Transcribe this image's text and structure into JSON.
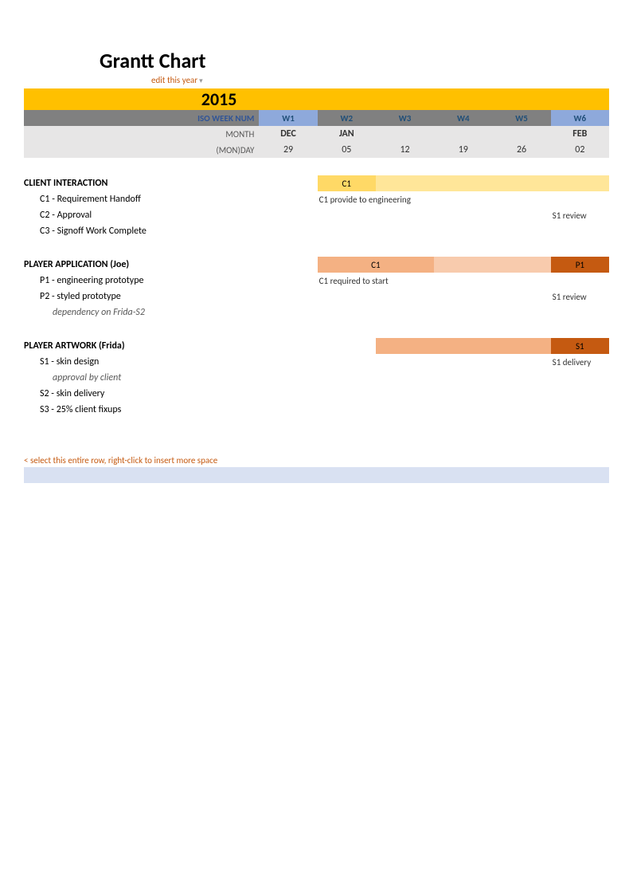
{
  "title": "Grantt Chart",
  "subtitle": "edit this year",
  "year": "2015",
  "colors": {
    "orange_band": "#ffc000",
    "grey_band": "#808080",
    "darkblue_text": "#1f4e78",
    "lightblue_cell": "#8ea9db",
    "lightgrey": "#e7e6e6",
    "accent_text": "#c55a11",
    "bar_yellow": "#ffd966",
    "bar_yellow_light": "#ffe699",
    "bar_orange": "#f4b183",
    "bar_orange_dark": "#c55a11",
    "footer_blue": "#d9e1f2"
  },
  "header": {
    "iso_label": "ISO WEEK NUM",
    "month_label": "MONTH",
    "day_label": "(MON)DAY",
    "weeks": [
      "W1",
      "W2",
      "W3",
      "W4",
      "W5",
      "W6"
    ],
    "months": [
      "DEC",
      "JAN",
      "",
      "",
      "",
      "FEB"
    ],
    "days": [
      "29",
      "05",
      "12",
      "19",
      "26",
      "02"
    ],
    "blue_weeks": [
      0,
      5
    ]
  },
  "sections": [
    {
      "title": "CLIENT INTERACTION",
      "bar": {
        "type": "yellow",
        "start": 1,
        "end": 5,
        "label_col": 1,
        "label": "C1"
      },
      "rows": [
        {
          "label": "C1 - Requirement Handoff",
          "note": {
            "col": 1,
            "span": 3,
            "text": "C1 provide to engineering"
          }
        },
        {
          "label": "C2 - Approval",
          "note": {
            "col": 5,
            "span": 1,
            "text": "S1 review"
          }
        },
        {
          "label": "C3 - Signoff Work Complete"
        }
      ]
    },
    {
      "title": "PLAYER APPLICATION (Joe)",
      "bar": {
        "type": "orange",
        "start": 1,
        "end": 4,
        "label_col": 1,
        "label": "C1",
        "tail": {
          "col": 5,
          "label": "P1"
        }
      },
      "rows": [
        {
          "label": "P1 - engineering prototype",
          "note": {
            "col": 1,
            "span": 3,
            "text": "C1 required to start"
          }
        },
        {
          "label": "P2 - styled prototype",
          "note": {
            "col": 5,
            "span": 1,
            "text": "S1 review"
          }
        },
        {
          "label": "dependency on Frida-S2",
          "dep": true
        }
      ]
    },
    {
      "title": "PLAYER ARTWORK (Frida)",
      "bar": {
        "type": "orange",
        "start": 2,
        "end": 4,
        "tail": {
          "col": 5,
          "label": "S1"
        }
      },
      "rows": [
        {
          "label": "S1 - skin design",
          "note": {
            "col": 5,
            "span": 1,
            "text": "S1 delivery"
          }
        },
        {
          "label": "approval by client",
          "dep": true
        },
        {
          "label": "S2 - skin delivery"
        },
        {
          "label": "S3 - 25% client fixups"
        }
      ]
    }
  ],
  "hint": "< select this entire row, right-click to insert more space"
}
